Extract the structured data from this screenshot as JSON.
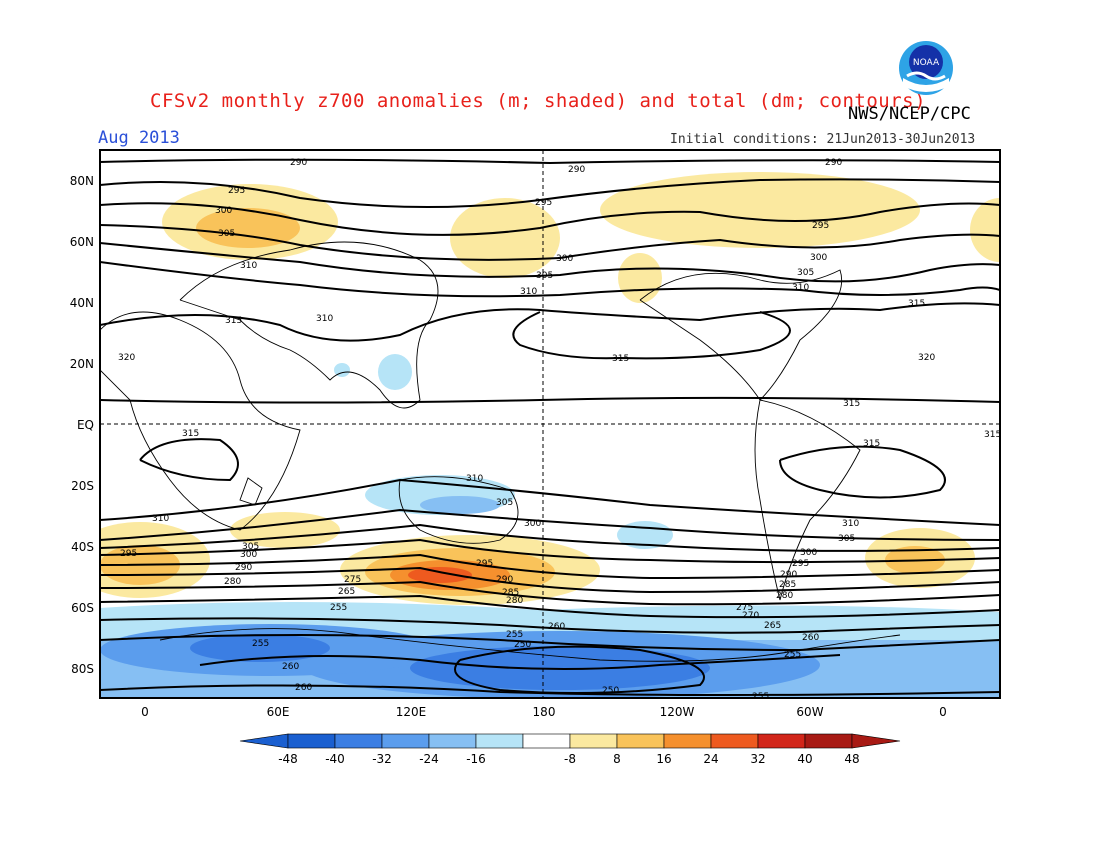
{
  "header": {
    "title": "CFSv2 monthly z700 anomalies (m; shaded) and total (dm; contours)",
    "agency": "NWS/NCEP/CPC",
    "month": "Aug 2013",
    "initial_conditions": "Initial conditions: 21Jun2013-30Jun2013",
    "logo_text": "NOAA"
  },
  "map": {
    "lat_labels": [
      "80N",
      "60N",
      "40N",
      "20N",
      "EQ",
      "20S",
      "40S",
      "60S",
      "80S"
    ],
    "lon_labels": [
      "0",
      "60E",
      "120E",
      "180",
      "120W",
      "60W",
      "0"
    ],
    "contour_labels": [
      "290",
      "295",
      "300",
      "305",
      "310",
      "315",
      "320",
      "285",
      "280",
      "275",
      "270",
      "265",
      "260",
      "255",
      "250"
    ]
  },
  "colorbar": {
    "values": [
      "-48",
      "-40",
      "-32",
      "-24",
      "-16",
      "-8",
      "8",
      "16",
      "24",
      "32",
      "40",
      "48"
    ],
    "colors": [
      "#1a5fd0",
      "#3b7ee3",
      "#5b9ded",
      "#86bff3",
      "#b6e4f7",
      "#ffffff",
      "#fbe9a0",
      "#f9c35a",
      "#f5902e",
      "#ee5a1f",
      "#d2261a",
      "#a81a14"
    ]
  },
  "colors": {
    "title": "#e8211b",
    "month": "#2a4fd8"
  }
}
